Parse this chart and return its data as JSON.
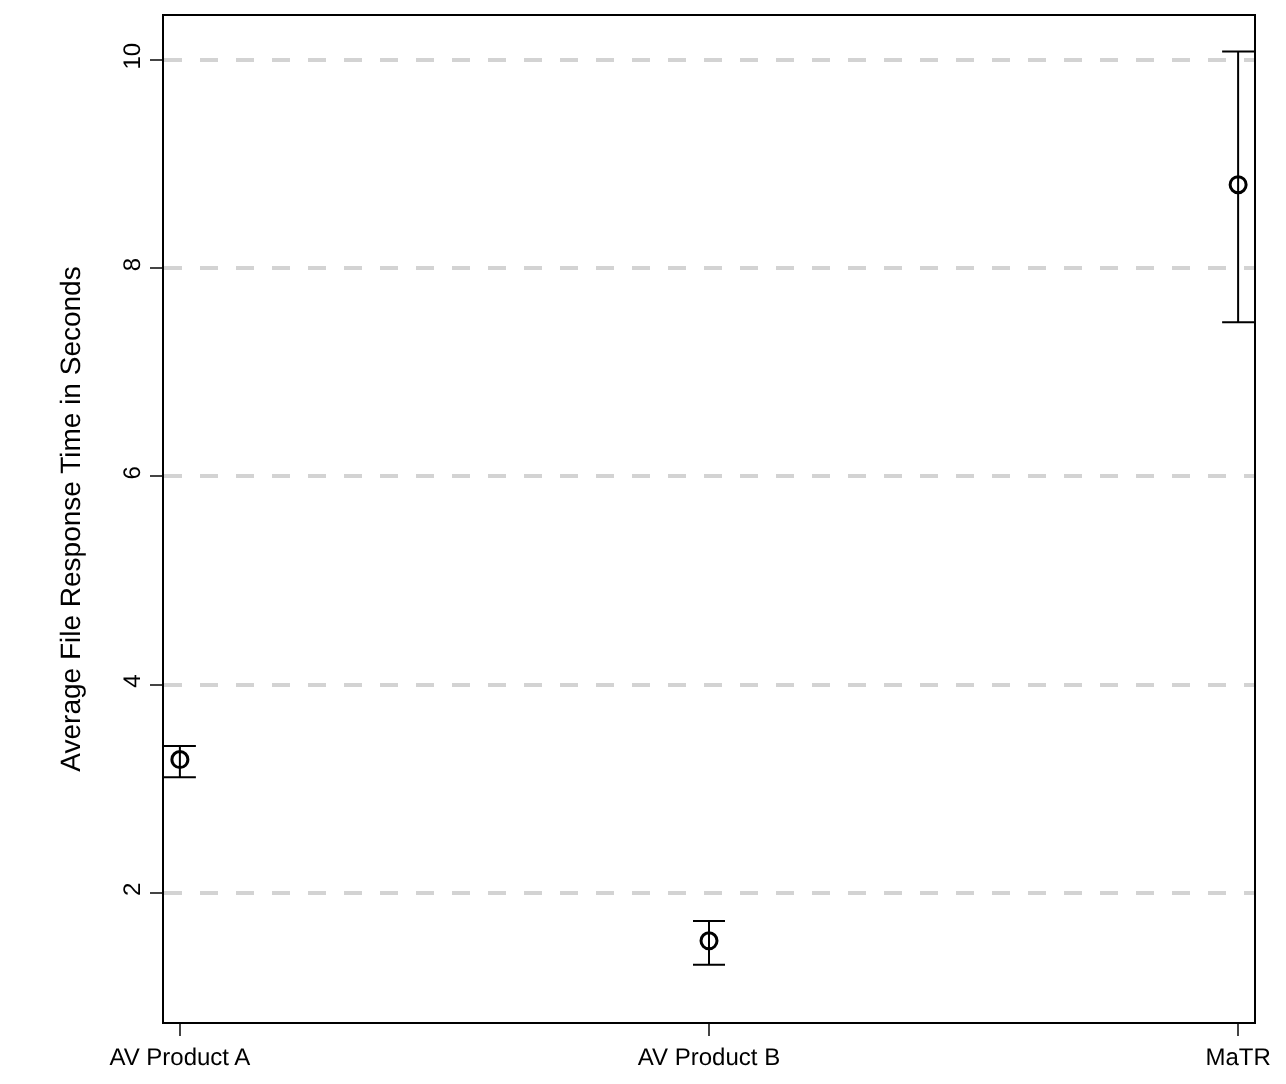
{
  "chart_data": {
    "type": "scatter",
    "ylabel": "Average File Response Time in Seconds",
    "categories": [
      "AV Product A",
      "AV Product B",
      "MaTR"
    ],
    "series": [
      {
        "color": "#000000",
        "values": [
          3.28,
          1.54,
          8.8
        ],
        "errors": [
          [
            3.11,
            3.41
          ],
          [
            1.31,
            1.73
          ],
          [
            7.48,
            10.08
          ]
        ]
      }
    ],
    "ylim": [
      0.76,
      10.42
    ],
    "yticks": [
      2,
      4,
      6,
      8,
      10
    ],
    "grid": "y",
    "marker": "circle"
  }
}
